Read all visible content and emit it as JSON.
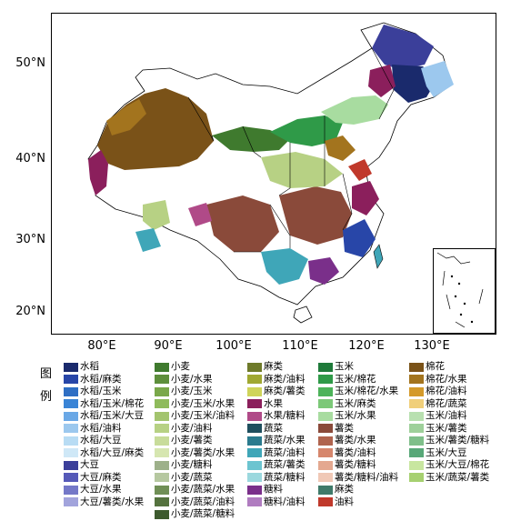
{
  "axes": {
    "lat_labels": [
      "50°N",
      "40°N",
      "30°N",
      "20°N"
    ],
    "lon_labels": [
      "80°E",
      "90°E",
      "100°E",
      "110°E",
      "120°E",
      "130°E"
    ]
  },
  "legend": {
    "title_a": "图",
    "title_b": "例",
    "columns": [
      [
        {
          "label": "水稻",
          "color": "#1a2a6c"
        },
        {
          "label": "水稻/麻类",
          "color": "#2846a8"
        },
        {
          "label": "水稻/玉米",
          "color": "#2f6fc4"
        },
        {
          "label": "水稻/玉米/棉花",
          "color": "#3a84d6"
        },
        {
          "label": "水稻/玉米/大豆",
          "color": "#6aa8e6"
        },
        {
          "label": "水稻/油料",
          "color": "#9cc8ee"
        },
        {
          "label": "水稻/大豆",
          "color": "#b8dcf4"
        },
        {
          "label": "水稻/大豆/麻类",
          "color": "#cfe8f7"
        },
        {
          "label": "大豆",
          "color": "#3b3f9a"
        },
        {
          "label": "大豆/麻类",
          "color": "#5559b8"
        },
        {
          "label": "大豆/水果",
          "color": "#7478c8"
        },
        {
          "label": "大豆/薯类/水果",
          "color": "#a2a4dc"
        }
      ],
      [
        {
          "label": "小麦",
          "color": "#3f7a2e"
        },
        {
          "label": "小麦/水果",
          "color": "#5e8f3c"
        },
        {
          "label": "小麦/玉米",
          "color": "#7aa84a"
        },
        {
          "label": "小麦/玉米/水果",
          "color": "#8fbb5c"
        },
        {
          "label": "小麦/玉米/油料",
          "color": "#a3c46e"
        },
        {
          "label": "小麦/油料",
          "color": "#b7d184"
        },
        {
          "label": "小麦/薯类",
          "color": "#c8dc9a"
        },
        {
          "label": "小麦/薯类/水果",
          "color": "#d6e6b0"
        },
        {
          "label": "小麦/糖料",
          "color": "#9db08a"
        },
        {
          "label": "小麦/蔬菜",
          "color": "#b6c8a0"
        },
        {
          "label": "小麦/蔬菜/水果",
          "color": "#708f56"
        },
        {
          "label": "小麦/蔬菜/油料",
          "color": "#55733f"
        },
        {
          "label": "小麦/蔬菜/糖料",
          "color": "#3d5a2e"
        }
      ],
      [
        {
          "label": "麻类",
          "color": "#6e7a2a"
        },
        {
          "label": "麻类/油料",
          "color": "#a0a832"
        },
        {
          "label": "麻类/薯类",
          "color": "#cfd45a"
        },
        {
          "label": "水果",
          "color": "#8b1f5c"
        },
        {
          "label": "水果/糖料",
          "color": "#b04a88"
        },
        {
          "label": "蔬菜",
          "color": "#1f4f5e"
        },
        {
          "label": "蔬菜/水果",
          "color": "#2a7b8e"
        },
        {
          "label": "蔬菜/油料",
          "color": "#3fa6b8"
        },
        {
          "label": "蔬菜/薯类",
          "color": "#6cc4d0"
        },
        {
          "label": "蔬菜/糖料",
          "color": "#9bd8de"
        },
        {
          "label": "糖料",
          "color": "#7a2f8a"
        },
        {
          "label": "糖料/油料",
          "color": "#b07cc0"
        }
      ],
      [
        {
          "label": "玉米",
          "color": "#1f7a3a"
        },
        {
          "label": "玉米/棉花",
          "color": "#2f9a48"
        },
        {
          "label": "玉米/棉花/水果",
          "color": "#4db35a"
        },
        {
          "label": "玉米/麻类",
          "color": "#7cc878"
        },
        {
          "label": "玉米/水果",
          "color": "#a8dca0"
        },
        {
          "label": "薯类",
          "color": "#8a4a3a"
        },
        {
          "label": "薯类/水果",
          "color": "#b0644e"
        },
        {
          "label": "薯类/油料",
          "color": "#d6866c"
        },
        {
          "label": "薯类/糖料",
          "color": "#e4a890"
        },
        {
          "label": "薯类/糖料/油料",
          "color": "#f0c8b6"
        },
        {
          "label": "麻类",
          "color": "#3f7a6a"
        },
        {
          "label": "油料",
          "color": "#c0392b"
        }
      ],
      [
        {
          "label": "棉花",
          "color": "#7a5218"
        },
        {
          "label": "棉花/水果",
          "color": "#a3741e"
        },
        {
          "label": "棉花/油料",
          "color": "#d49a2a"
        },
        {
          "label": "棉花/蔬菜",
          "color": "#f0cf7a"
        },
        {
          "label": "玉米/油料",
          "color": "#b8e0b0"
        },
        {
          "label": "玉米/薯类",
          "color": "#9ed09a"
        },
        {
          "label": "玉米/薯类/糖料",
          "color": "#7fbf8a"
        },
        {
          "label": "玉米/大豆",
          "color": "#58a878"
        },
        {
          "label": "玉米/大豆/棉花",
          "color": "#c8e6a0"
        },
        {
          "label": "玉米/蔬菜/薯类",
          "color": "#a6d070"
        }
      ]
    ]
  }
}
